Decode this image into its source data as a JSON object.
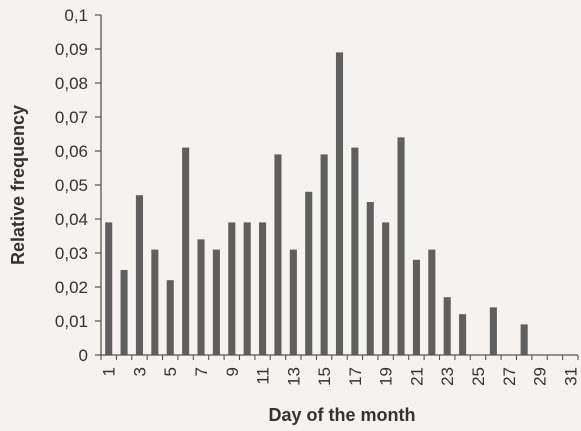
{
  "chart_data": {
    "type": "bar",
    "title": "",
    "xlabel": "Day of the month",
    "ylabel": "Relative frequency",
    "ylim": [
      0,
      0.1
    ],
    "yticks": [
      0,
      0.01,
      0.02,
      0.03,
      0.04,
      0.05,
      0.06,
      0.07,
      0.08,
      0.09,
      0.1
    ],
    "yticklabels": [
      "0",
      "0,01",
      "0,02",
      "0,03",
      "0,04",
      "0,05",
      "0,06",
      "0,07",
      "0,08",
      "0,09",
      "0,1"
    ],
    "xticklabels": [
      "1",
      "3",
      "5",
      "7",
      "9",
      "11",
      "13",
      "15",
      "17",
      "19",
      "21",
      "23",
      "25",
      "27",
      "29",
      "31"
    ],
    "categories": [
      1,
      2,
      3,
      4,
      5,
      6,
      7,
      8,
      9,
      10,
      11,
      12,
      13,
      14,
      15,
      16,
      17,
      18,
      19,
      20,
      21,
      22,
      23,
      24,
      25,
      26,
      27,
      28,
      29,
      30,
      31
    ],
    "values": [
      0.039,
      0.025,
      0.047,
      0.031,
      0.022,
      0.061,
      0.034,
      0.031,
      0.039,
      0.039,
      0.039,
      0.059,
      0.031,
      0.048,
      0.059,
      0.089,
      0.061,
      0.045,
      0.039,
      0.064,
      0.028,
      0.031,
      0.017,
      0.012,
      0,
      0.014,
      0,
      0.009,
      0,
      0,
      0
    ],
    "grid": false,
    "legend": "none",
    "bar_color": "#5f5f5f",
    "axis_color": "#555555"
  }
}
